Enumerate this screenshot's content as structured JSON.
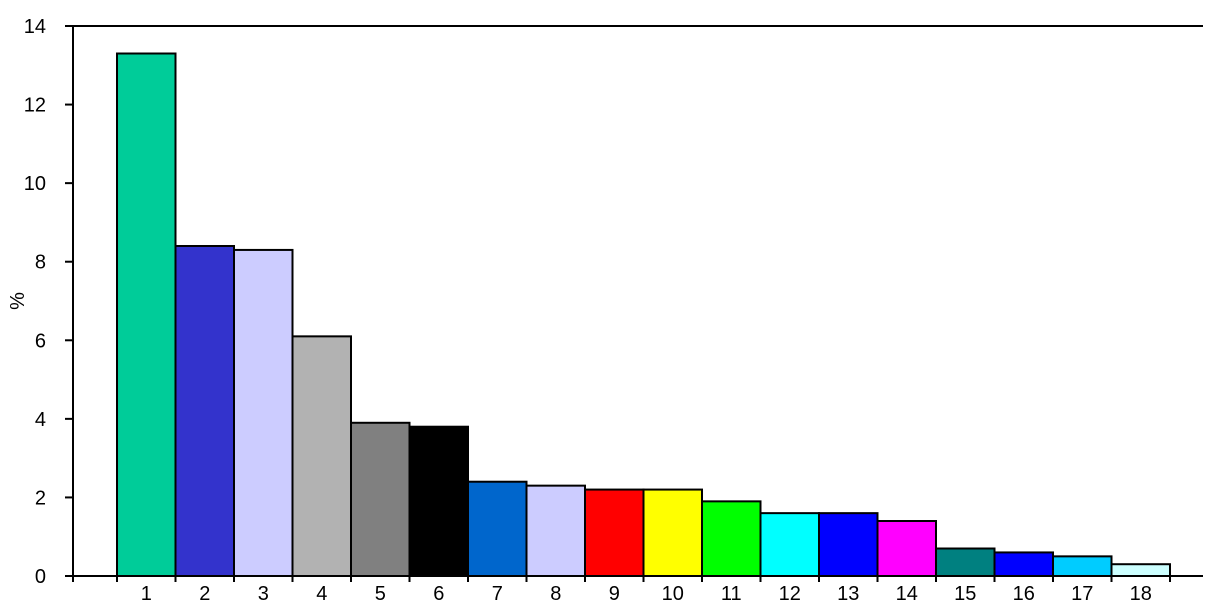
{
  "chart_data": {
    "type": "bar",
    "categories": [
      "1",
      "2",
      "3",
      "4",
      "5",
      "6",
      "7",
      "8",
      "9",
      "10",
      "11",
      "12",
      "13",
      "14",
      "15",
      "16",
      "17",
      "18"
    ],
    "values": [
      13.3,
      8.4,
      8.3,
      6.1,
      3.9,
      3.8,
      2.4,
      2.3,
      2.2,
      2.2,
      1.9,
      1.6,
      1.6,
      1.4,
      0.7,
      0.6,
      0.5,
      0.3
    ],
    "colors": [
      "#00CC99",
      "#3333CC",
      "#CCCCFF",
      "#B2B2B2",
      "#808080",
      "#000000",
      "#0066CC",
      "#CCCCFF",
      "#FF0000",
      "#FFFF00",
      "#00FF00",
      "#00FFFF",
      "#0000FF",
      "#FF00FF",
      "#008080",
      "#0000FF",
      "#00CCFF",
      "#CCFFFF"
    ],
    "title": "",
    "xlabel": "",
    "ylabel": "%",
    "ylim": [
      0,
      14
    ],
    "yticks": [
      "0",
      "2",
      "4",
      "6",
      "8",
      "10",
      "12",
      "14"
    ],
    "grid": false,
    "legend": "none"
  }
}
